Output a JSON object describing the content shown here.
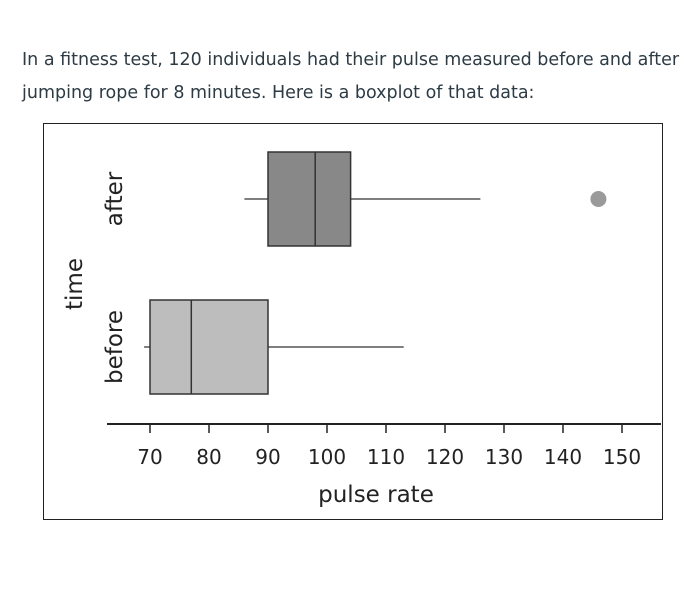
{
  "prompt": {
    "line1": "In a fitness test, 120 individuals had their pulse measured before and after",
    "line2": "jumping rope for 8 minutes. Here is a boxplot of that data:"
  },
  "chart_data": {
    "type": "boxplot",
    "xlabel": "pulse rate",
    "ylabel": "time",
    "xlim": [
      65,
      157
    ],
    "xticks": [
      70,
      80,
      90,
      100,
      110,
      120,
      130,
      140,
      150
    ],
    "grid": false,
    "series": [
      {
        "name": "after",
        "whisker_low": 86,
        "q1": 90,
        "median": 98,
        "q3": 104,
        "whisker_high": 126,
        "outliers": [
          146
        ],
        "color": "#888888"
      },
      {
        "name": "before",
        "whisker_low": 69,
        "q1": 70,
        "median": 77,
        "q3": 90,
        "whisker_high": 113,
        "outliers": [],
        "color": "#bdbdbd"
      }
    ]
  }
}
